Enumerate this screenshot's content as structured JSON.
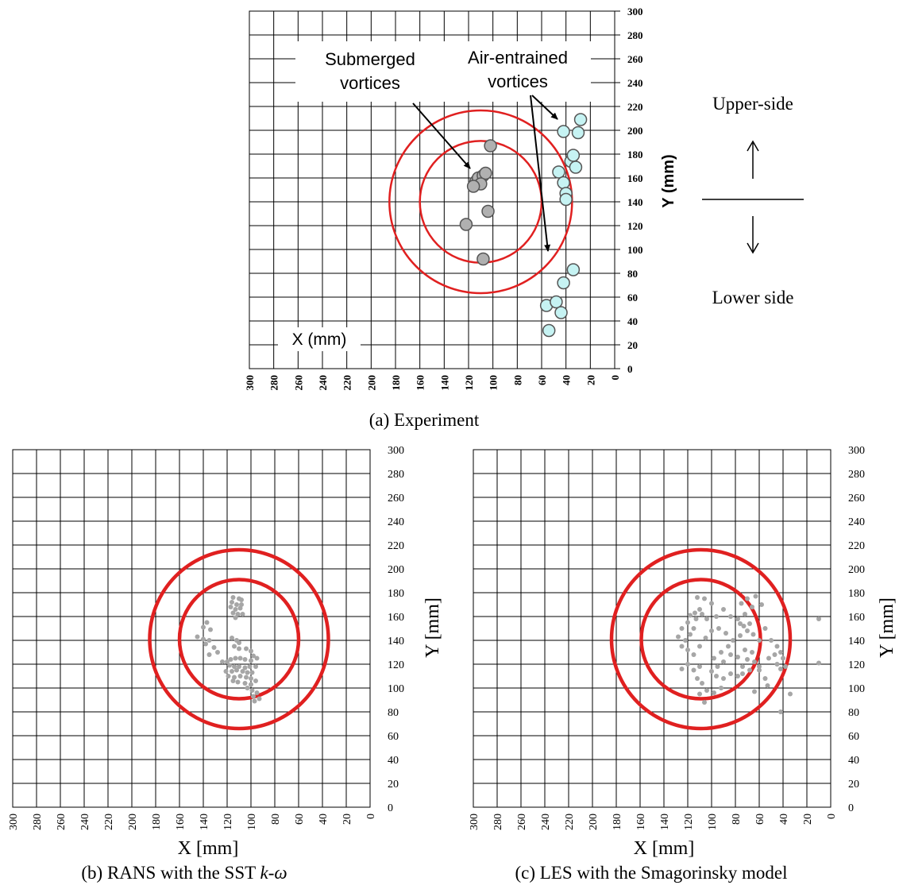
{
  "figure": {
    "direction": {
      "upper_label": "Upper-side",
      "lower_label": "Lower side"
    },
    "panels": [
      {
        "id": "a",
        "caption": "(a)  Experiment",
        "xlabel": "X (mm)",
        "ylabel": "Y (mm)",
        "annotations": [
          "Submerged",
          "vortices",
          "Air-entrained",
          "vortices"
        ]
      },
      {
        "id": "b",
        "caption_prefix": "(b)   RANS with the SST ",
        "caption_model": "k-ω",
        "xlabel": "X [mm]",
        "ylabel": "Y [mm]"
      },
      {
        "id": "c",
        "caption": "(c)   LES with the Smagorinsky model",
        "xlabel": "X [mm]",
        "ylabel": "Y [mm]"
      }
    ]
  },
  "chart_data": [
    {
      "type": "scatter",
      "panel": "a",
      "x_reversed": true,
      "xlim": [
        300,
        0
      ],
      "ylim": [
        0,
        300
      ],
      "xticks": [
        300,
        280,
        260,
        240,
        220,
        200,
        180,
        160,
        140,
        120,
        100,
        80,
        60,
        40,
        20,
        0
      ],
      "yticks": [
        0,
        20,
        40,
        60,
        80,
        100,
        120,
        140,
        160,
        180,
        200,
        220,
        240,
        260,
        280,
        300
      ],
      "grid": true,
      "circles": [
        {
          "cx": 110,
          "cy": 140,
          "r": 50,
          "color": "#e02020"
        },
        {
          "cx": 110,
          "cy": 140,
          "r": 75,
          "color": "#e02020"
        }
      ],
      "series": [
        {
          "name": "Submerged vortices",
          "color": "#b0b0b0",
          "points": [
            [
              102,
              187
            ],
            [
              114,
              157
            ],
            [
              112,
              160
            ],
            [
              108,
              162
            ],
            [
              106,
              164
            ],
            [
              110,
              155
            ],
            [
              116,
              153
            ],
            [
              104,
              132
            ],
            [
              122,
              121
            ],
            [
              108,
              92
            ]
          ]
        },
        {
          "name": "Air-entrained vortices",
          "color": "#c6f3f3",
          "points": [
            [
              28,
              209
            ],
            [
              30,
              198
            ],
            [
              42,
              199
            ],
            [
              36,
              174
            ],
            [
              34,
              179
            ],
            [
              32,
              169
            ],
            [
              46,
              165
            ],
            [
              42,
              156
            ],
            [
              40,
              147
            ],
            [
              40,
              142
            ],
            [
              34,
              83
            ],
            [
              42,
              72
            ],
            [
              56,
              53
            ],
            [
              48,
              56
            ],
            [
              44,
              47
            ],
            [
              54,
              32
            ]
          ]
        }
      ]
    },
    {
      "type": "scatter",
      "panel": "b",
      "x_reversed": true,
      "xlim": [
        300,
        0
      ],
      "ylim": [
        0,
        300
      ],
      "xticks": [
        300,
        280,
        260,
        240,
        220,
        200,
        180,
        160,
        140,
        120,
        100,
        80,
        60,
        40,
        20,
        0
      ],
      "yticks": [
        0,
        20,
        40,
        60,
        80,
        100,
        120,
        140,
        160,
        180,
        200,
        220,
        240,
        260,
        280,
        300
      ],
      "grid": true,
      "circles": [
        {
          "cx": 110,
          "cy": 141,
          "r": 50,
          "color": "#e02020"
        },
        {
          "cx": 110,
          "cy": 141,
          "r": 75,
          "color": "#e02020"
        }
      ],
      "series": [
        {
          "color": "#a6a6a6",
          "points": [
            [
              115,
              176
            ],
            [
              110,
              175
            ],
            [
              108,
              174
            ],
            [
              116,
              172
            ],
            [
              112,
              170
            ],
            [
              108,
              170
            ],
            [
              117,
              168
            ],
            [
              113,
              166
            ],
            [
              109,
              167
            ],
            [
              115,
              163
            ],
            [
              111,
              162
            ],
            [
              107,
              162
            ],
            [
              113,
              159
            ],
            [
              137,
              155
            ],
            [
              140,
              151
            ],
            [
              134,
              149
            ],
            [
              145,
              143
            ],
            [
              140,
              141
            ],
            [
              135,
              140
            ],
            [
              138,
              137
            ],
            [
              131,
              134
            ],
            [
              128,
              130
            ],
            [
              135,
              128
            ],
            [
              116,
              142
            ],
            [
              112,
              140
            ],
            [
              110,
              138
            ],
            [
              114,
              135
            ],
            [
              110,
              133
            ],
            [
              104,
              133
            ],
            [
              100,
              131
            ],
            [
              98,
              127
            ],
            [
              95,
              125
            ],
            [
              100,
              123
            ],
            [
              105,
              124
            ],
            [
              109,
              125
            ],
            [
              113,
              125
            ],
            [
              117,
              124
            ],
            [
              120,
              122
            ],
            [
              124,
              122
            ],
            [
              118,
              119
            ],
            [
              114,
              118
            ],
            [
              110,
              118
            ],
            [
              105,
              117
            ],
            [
              101,
              118
            ],
            [
              96,
              118
            ],
            [
              99,
              113
            ],
            [
              103,
              113
            ],
            [
              107,
              114
            ],
            [
              112,
              115
            ],
            [
              116,
              114
            ],
            [
              121,
              114
            ],
            [
              119,
              110
            ],
            [
              114,
              109
            ],
            [
              109,
              110
            ],
            [
              104,
              109
            ],
            [
              100,
              108
            ],
            [
              96,
              106
            ],
            [
              100,
              103
            ],
            [
              105,
              104
            ],
            [
              111,
              105
            ],
            [
              115,
              106
            ],
            [
              103,
              100
            ],
            [
              99,
              98
            ],
            [
              95,
              96
            ],
            [
              98,
              93
            ],
            [
              93,
              91
            ],
            [
              97,
              89
            ]
          ]
        }
      ]
    },
    {
      "type": "scatter",
      "panel": "c",
      "x_reversed": true,
      "xlim": [
        300,
        0
      ],
      "ylim": [
        0,
        300
      ],
      "xticks": [
        300,
        280,
        260,
        240,
        220,
        200,
        180,
        160,
        140,
        120,
        100,
        80,
        60,
        40,
        20,
        0
      ],
      "yticks": [
        0,
        20,
        40,
        60,
        80,
        100,
        120,
        140,
        160,
        180,
        200,
        220,
        240,
        260,
        280,
        300
      ],
      "grid": true,
      "circles": [
        {
          "cx": 109,
          "cy": 141,
          "r": 50,
          "color": "#e02020"
        },
        {
          "cx": 109,
          "cy": 141,
          "r": 75,
          "color": "#e02020"
        }
      ],
      "series": [
        {
          "color": "#a6a6a6",
          "points": [
            [
              112,
              176
            ],
            [
              106,
              175
            ],
            [
              100,
              171
            ],
            [
              110,
              166
            ],
            [
              114,
              163
            ],
            [
              108,
              162
            ],
            [
              118,
              161
            ],
            [
              113,
              158
            ],
            [
              104,
              158
            ],
            [
              96,
              160
            ],
            [
              90,
              166
            ],
            [
              84,
              160
            ],
            [
              78,
              158
            ],
            [
              72,
              162
            ],
            [
              66,
              168
            ],
            [
              63,
              177
            ],
            [
              70,
              175
            ],
            [
              75,
              171
            ],
            [
              58,
              170
            ],
            [
              120,
              155
            ],
            [
              115,
              150
            ],
            [
              125,
              150
            ],
            [
              118,
              145
            ],
            [
              122,
              140
            ],
            [
              128,
              143
            ],
            [
              125,
              135
            ],
            [
              120,
              132
            ],
            [
              115,
              128
            ],
            [
              110,
              135
            ],
            [
              105,
              142
            ],
            [
              100,
              148
            ],
            [
              94,
              150
            ],
            [
              88,
              146
            ],
            [
              82,
              140
            ],
            [
              76,
              144
            ],
            [
              70,
              148
            ],
            [
              68,
              154
            ],
            [
              73,
              152
            ],
            [
              76,
              154
            ],
            [
              65,
              145
            ],
            [
              60,
              140
            ],
            [
              55,
              150
            ],
            [
              50,
              140
            ],
            [
              45,
              135
            ],
            [
              42,
              130
            ],
            [
              47,
              128
            ],
            [
              52,
              125
            ],
            [
              40,
              125
            ],
            [
              45,
              120
            ],
            [
              42,
              116
            ],
            [
              38,
              118
            ],
            [
              66,
              130
            ],
            [
              72,
              132
            ],
            [
              78,
              126
            ],
            [
              84,
              128
            ],
            [
              90,
              122
            ],
            [
              95,
              118
            ],
            [
              100,
              114
            ],
            [
              96,
              110
            ],
            [
              90,
              108
            ],
            [
              84,
              112
            ],
            [
              78,
              110
            ],
            [
              74,
              118
            ],
            [
              70,
              124
            ],
            [
              64,
              122
            ],
            [
              68,
              115
            ],
            [
              74,
              112
            ],
            [
              60,
              115
            ],
            [
              55,
              108
            ],
            [
              110,
              118
            ],
            [
              115,
              115
            ],
            [
              120,
              120
            ],
            [
              125,
              116
            ],
            [
              112,
              108
            ],
            [
              108,
              104
            ],
            [
              104,
              98
            ],
            [
              110,
              95
            ],
            [
              106,
              88
            ],
            [
              98,
              96
            ],
            [
              92,
              100
            ],
            [
              64,
              97
            ],
            [
              60,
              118
            ],
            [
              53,
              102
            ],
            [
              34,
              95
            ],
            [
              42,
              80
            ],
            [
              10,
              158
            ],
            [
              10,
              121
            ],
            [
              86,
              135
            ],
            [
              92,
              130
            ],
            [
              98,
              125
            ]
          ]
        }
      ]
    }
  ]
}
